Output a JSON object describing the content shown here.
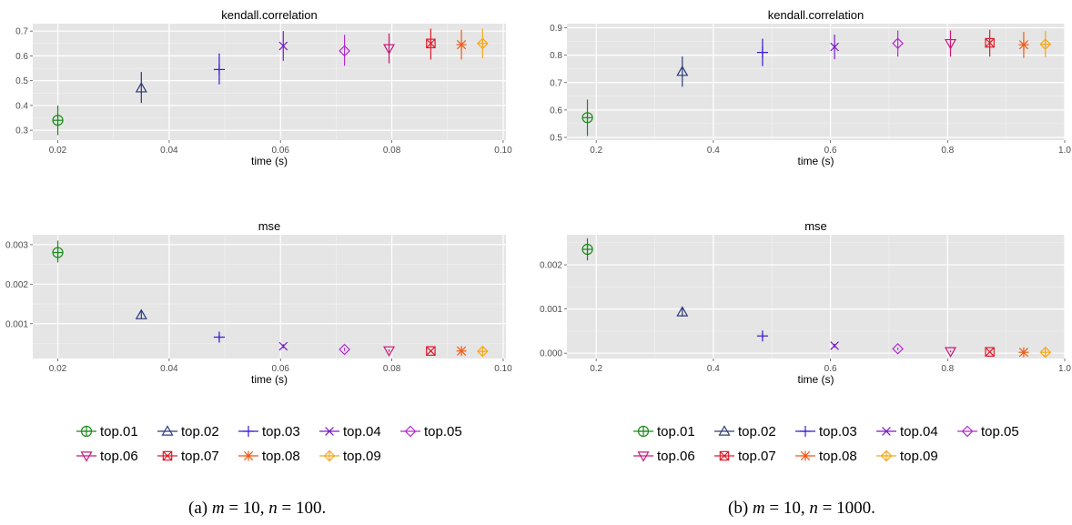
{
  "chart_data": [
    {
      "id": "a",
      "caption": "(a) m = 10, n = 100.",
      "caption_parts": {
        "label": "(a)",
        "m": "m",
        "m_value": "10",
        "n": "n",
        "n_value": "100"
      },
      "legend": [
        "top.01",
        "top.02",
        "top.03",
        "top.04",
        "top.05",
        "top.06",
        "top.07",
        "top.08",
        "top.09"
      ],
      "panels": [
        {
          "type": "scatter",
          "title": "kendall.correlation",
          "xlabel": "time (s)",
          "ylabel": "",
          "xlim": [
            0.0155,
            0.1005
          ],
          "ylim": [
            0.26,
            0.73
          ],
          "xticks": [
            0.02,
            0.04,
            0.06,
            0.08,
            0.1
          ],
          "xtick_labels": [
            "0.02",
            "0.04",
            "0.06",
            "0.08",
            "0.10"
          ],
          "yticks": [
            0.3,
            0.4,
            0.5,
            0.6,
            0.7
          ],
          "ytick_labels": [
            "0.3",
            "0.4",
            "0.5",
            "0.6",
            "0.7"
          ],
          "grid": true,
          "series": [
            {
              "name": "top.01",
              "x": 0.02,
              "y": 0.34,
              "ylow": 0.28,
              "yhigh": 0.4
            },
            {
              "name": "top.02",
              "x": 0.035,
              "y": 0.47,
              "ylow": 0.41,
              "yhigh": 0.535
            },
            {
              "name": "top.03",
              "x": 0.049,
              "y": 0.545,
              "ylow": 0.485,
              "yhigh": 0.61
            },
            {
              "name": "top.04",
              "x": 0.0605,
              "y": 0.64,
              "ylow": 0.58,
              "yhigh": 0.7
            },
            {
              "name": "top.05",
              "x": 0.0715,
              "y": 0.62,
              "ylow": 0.56,
              "yhigh": 0.685
            },
            {
              "name": "top.06",
              "x": 0.0795,
              "y": 0.63,
              "ylow": 0.57,
              "yhigh": 0.69
            },
            {
              "name": "top.07",
              "x": 0.087,
              "y": 0.65,
              "ylow": 0.585,
              "yhigh": 0.71
            },
            {
              "name": "top.08",
              "x": 0.0925,
              "y": 0.645,
              "ylow": 0.585,
              "yhigh": 0.705
            },
            {
              "name": "top.09",
              "x": 0.0963,
              "y": 0.65,
              "ylow": 0.59,
              "yhigh": 0.71
            }
          ]
        },
        {
          "type": "scatter",
          "title": "mse",
          "xlabel": "time (s)",
          "ylabel": "",
          "xlim": [
            0.0155,
            0.1005
          ],
          "ylim": [
            0.00012,
            0.00325
          ],
          "xticks": [
            0.02,
            0.04,
            0.06,
            0.08,
            0.1
          ],
          "xtick_labels": [
            "0.02",
            "0.04",
            "0.06",
            "0.08",
            "0.10"
          ],
          "yticks": [
            0.001,
            0.002,
            0.003
          ],
          "ytick_labels": [
            "0.001",
            "0.002",
            "0.003"
          ],
          "grid": true,
          "series": [
            {
              "name": "top.01",
              "x": 0.02,
              "y": 0.0028,
              "ylow": 0.00255,
              "yhigh": 0.0031
            },
            {
              "name": "top.02",
              "x": 0.035,
              "y": 0.00122,
              "ylow": 0.00112,
              "yhigh": 0.00132
            },
            {
              "name": "top.03",
              "x": 0.049,
              "y": 0.00066,
              "ylow": 0.00059,
              "yhigh": 0.00073
            },
            {
              "name": "top.04",
              "x": 0.0605,
              "y": 0.00043,
              "ylow": 0.00038,
              "yhigh": 0.00048
            },
            {
              "name": "top.05",
              "x": 0.0715,
              "y": 0.00035,
              "ylow": 0.00031,
              "yhigh": 0.00039
            },
            {
              "name": "top.06",
              "x": 0.0795,
              "y": 0.00032,
              "ylow": 0.00029,
              "yhigh": 0.00035
            },
            {
              "name": "top.07",
              "x": 0.087,
              "y": 0.00031,
              "ylow": 0.00028,
              "yhigh": 0.00034
            },
            {
              "name": "top.08",
              "x": 0.0925,
              "y": 0.00031,
              "ylow": 0.00028,
              "yhigh": 0.00034
            },
            {
              "name": "top.09",
              "x": 0.0963,
              "y": 0.0003,
              "ylow": 0.00027,
              "yhigh": 0.00033
            }
          ]
        }
      ]
    },
    {
      "id": "b",
      "caption": "(b) m = 10, n = 1000.",
      "caption_parts": {
        "label": "(b)",
        "m": "m",
        "m_value": "10",
        "n": "n",
        "n_value": "1000"
      },
      "legend": [
        "top.01",
        "top.02",
        "top.03",
        "top.04",
        "top.05",
        "top.06",
        "top.07",
        "top.08",
        "top.09"
      ],
      "panels": [
        {
          "type": "scatter",
          "title": "kendall.correlation",
          "xlabel": "time (s)",
          "ylabel": "",
          "xlim": [
            0.15,
            1.0
          ],
          "ylim": [
            0.49,
            0.915
          ],
          "xticks": [
            0.2,
            0.4,
            0.6,
            0.8,
            1.0
          ],
          "xtick_labels": [
            "0.2",
            "0.4",
            "0.6",
            "0.8",
            "1.0"
          ],
          "yticks": [
            0.5,
            0.6,
            0.7,
            0.8,
            0.9
          ],
          "ytick_labels": [
            "0.5",
            "0.6",
            "0.7",
            "0.8",
            "0.9"
          ],
          "grid": true,
          "series": [
            {
              "name": "top.01",
              "x": 0.185,
              "y": 0.572,
              "ylow": 0.505,
              "yhigh": 0.638
            },
            {
              "name": "top.02",
              "x": 0.347,
              "y": 0.74,
              "ylow": 0.685,
              "yhigh": 0.795
            },
            {
              "name": "top.03",
              "x": 0.484,
              "y": 0.81,
              "ylow": 0.76,
              "yhigh": 0.86
            },
            {
              "name": "top.04",
              "x": 0.607,
              "y": 0.83,
              "ylow": 0.785,
              "yhigh": 0.875
            },
            {
              "name": "top.05",
              "x": 0.715,
              "y": 0.843,
              "ylow": 0.795,
              "yhigh": 0.89
            },
            {
              "name": "top.06",
              "x": 0.805,
              "y": 0.843,
              "ylow": 0.795,
              "yhigh": 0.89
            },
            {
              "name": "top.07",
              "x": 0.872,
              "y": 0.845,
              "ylow": 0.795,
              "yhigh": 0.893
            },
            {
              "name": "top.08",
              "x": 0.93,
              "y": 0.838,
              "ylow": 0.79,
              "yhigh": 0.885
            },
            {
              "name": "top.09",
              "x": 0.967,
              "y": 0.84,
              "ylow": 0.792,
              "yhigh": 0.888
            }
          ]
        },
        {
          "type": "scatter",
          "title": "mse",
          "xlabel": "time (s)",
          "ylabel": "",
          "xlim": [
            0.15,
            1.0
          ],
          "ylim": [
            -0.00012,
            0.00268
          ],
          "xticks": [
            0.2,
            0.4,
            0.6,
            0.8,
            1.0
          ],
          "xtick_labels": [
            "0.2",
            "0.4",
            "0.6",
            "0.8",
            "1.0"
          ],
          "yticks": [
            0.0,
            0.001,
            0.002
          ],
          "ytick_labels": [
            "0.000",
            "0.001",
            "0.002"
          ],
          "grid": true,
          "series": [
            {
              "name": "top.01",
              "x": 0.185,
              "y": 0.00235,
              "ylow": 0.0021,
              "yhigh": 0.0026
            },
            {
              "name": "top.02",
              "x": 0.347,
              "y": 0.00093,
              "ylow": 0.00083,
              "yhigh": 0.00103
            },
            {
              "name": "top.03",
              "x": 0.484,
              "y": 0.00039,
              "ylow": 0.00033,
              "yhigh": 0.00045
            },
            {
              "name": "top.04",
              "x": 0.607,
              "y": 0.00017,
              "ylow": 0.00013,
              "yhigh": 0.00021
            },
            {
              "name": "top.05",
              "x": 0.715,
              "y": 0.0001,
              "ylow": 7e-05,
              "yhigh": 0.00013
            },
            {
              "name": "top.06",
              "x": 0.805,
              "y": 4e-05,
              "ylow": 2e-05,
              "yhigh": 6e-05
            },
            {
              "name": "top.07",
              "x": 0.872,
              "y": 3e-05,
              "ylow": 1e-05,
              "yhigh": 5e-05
            },
            {
              "name": "top.08",
              "x": 0.93,
              "y": 2e-05,
              "ylow": 0.0,
              "yhigh": 4e-05
            },
            {
              "name": "top.09",
              "x": 0.967,
              "y": 2e-05,
              "ylow": 0.0,
              "yhigh": 4e-05
            }
          ]
        }
      ]
    }
  ],
  "series_style": {
    "top.01": {
      "color": "#1a8a1a",
      "shape": "circle-plus"
    },
    "top.02": {
      "color": "#2b3a7a",
      "shape": "triangle"
    },
    "top.03": {
      "color": "#3a17d6",
      "shape": "plus"
    },
    "top.04": {
      "color": "#7a19c8",
      "shape": "cross"
    },
    "top.05": {
      "color": "#b22ad2",
      "shape": "diamond"
    },
    "top.06": {
      "color": "#c8187a",
      "shape": "triangle-down"
    },
    "top.07": {
      "color": "#e01b2b",
      "shape": "square-cross"
    },
    "top.08": {
      "color": "#f05a14",
      "shape": "asterisk"
    },
    "top.09": {
      "color": "#f5a81c",
      "shape": "diamond-plus"
    }
  },
  "colors": {
    "panel_bg": "#e5e5e5",
    "grid_major": "#ffffff",
    "grid_minor": "#f2f2f2",
    "tick_text": "#4d4d4d"
  }
}
